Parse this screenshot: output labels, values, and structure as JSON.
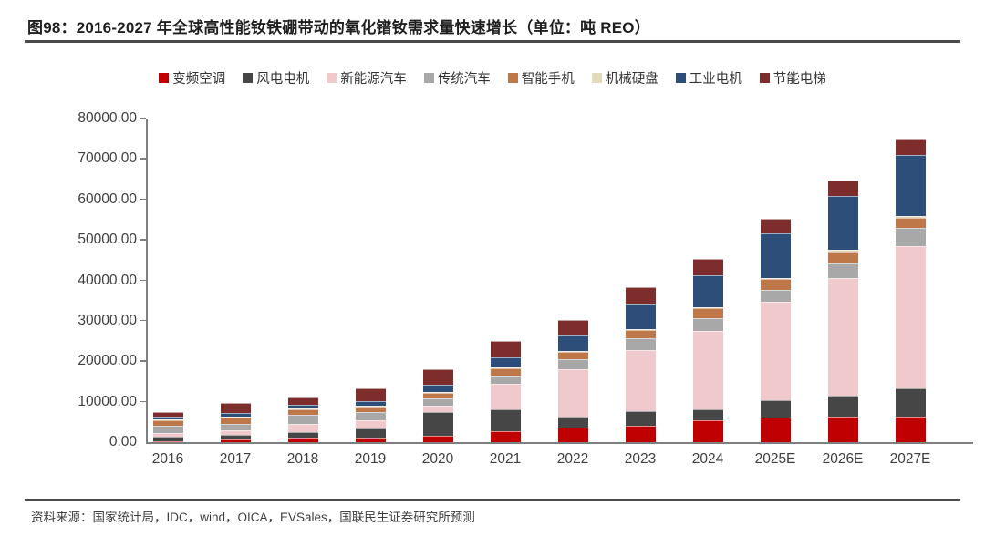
{
  "header": {
    "title": "图98：2016-2027 年全球高性能钕铁硼带动的氧化镨钕需求量快速增长（单位：吨 REO）"
  },
  "footer": {
    "source": "资料来源：国家统计局，IDC，wind，OICA，EVSales，国联民生证券研究所预测"
  },
  "chart_data": {
    "type": "bar",
    "stacked": true,
    "title": "2016-2027 年全球高性能钕铁硼带动的氧化镨钕需求量",
    "unit": "吨 REO",
    "grid": false,
    "legend_position": "top",
    "categories": [
      "2016",
      "2017",
      "2018",
      "2019",
      "2020",
      "2021",
      "2022",
      "2023",
      "2024",
      "2025E",
      "2026E",
      "2027E"
    ],
    "series": [
      {
        "name": "变频空调",
        "color": "#C00000",
        "values": [
          150,
          600,
          1100,
          1100,
          1600,
          2700,
          3500,
          4100,
          5400,
          6000,
          6200,
          6300
        ]
      },
      {
        "name": "风电电机",
        "color": "#464646",
        "values": [
          1100,
          1100,
          1300,
          2200,
          5800,
          5400,
          2700,
          3500,
          2700,
          4400,
          5300,
          7000
        ]
      },
      {
        "name": "新能源汽车",
        "color": "#F0C9CC",
        "values": [
          1000,
          1200,
          2100,
          2200,
          1600,
          6400,
          11800,
          15200,
          19500,
          24300,
          29000,
          35200
        ]
      },
      {
        "name": "传统汽车",
        "color": "#A8A8A8",
        "values": [
          1900,
          1700,
          2200,
          1900,
          1900,
          2000,
          2400,
          3000,
          3000,
          3000,
          3600,
          4500
        ]
      },
      {
        "name": "智能手机",
        "color": "#BE7748",
        "values": [
          1300,
          1600,
          1400,
          1400,
          1300,
          1800,
          2000,
          2000,
          2500,
          2700,
          3100,
          2500
        ]
      },
      {
        "name": "机械硬盘",
        "color": "#E3D9BE",
        "values": [
          200,
          200,
          200,
          200,
          200,
          200,
          200,
          200,
          200,
          200,
          300,
          300
        ]
      },
      {
        "name": "工业电机",
        "color": "#2D4E79",
        "values": [
          600,
          900,
          1000,
          1200,
          1900,
          2500,
          3700,
          6000,
          8000,
          10900,
          13300,
          15100
        ]
      },
      {
        "name": "节能电梯",
        "color": "#7E2D2D",
        "values": [
          1200,
          2500,
          1700,
          3100,
          3700,
          4000,
          4000,
          4200,
          3900,
          3800,
          3800,
          3900
        ]
      }
    ],
    "totals": [
      7450,
      9800,
      11000,
      13300,
      18000,
      25000,
      30300,
      38200,
      45200,
      55300,
      64600,
      74800
    ],
    "ylim": [
      0,
      80000
    ],
    "ytick_step": 10000,
    "ytick_labels": [
      "0.00",
      "10000.00",
      "20000.00",
      "30000.00",
      "40000.00",
      "50000.00",
      "60000.00",
      "70000.00",
      "80000.00"
    ]
  }
}
